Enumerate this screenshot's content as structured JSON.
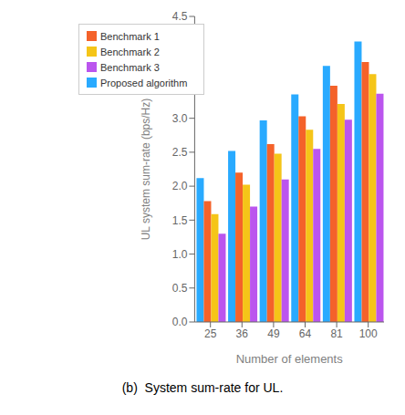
{
  "chart_data": {
    "type": "bar",
    "title": "(b)  System sum-rate for UL.",
    "xlabel": "Number of elements",
    "ylabel": "UL system sum-rate (bps/Hz)",
    "categories": [
      "25",
      "36",
      "49",
      "64",
      "81",
      "100"
    ],
    "series": [
      {
        "name": "Proposed algorithm",
        "color": "#29aaff",
        "values": [
          2.12,
          2.52,
          2.97,
          3.35,
          3.77,
          4.13
        ]
      },
      {
        "name": "Benchmark 1",
        "color": "#f4622a",
        "values": [
          1.78,
          2.2,
          2.62,
          3.03,
          3.48,
          3.83
        ]
      },
      {
        "name": "Benchmark 2",
        "color": "#f5c518",
        "values": [
          1.59,
          2.02,
          2.48,
          2.83,
          3.21,
          3.65
        ]
      },
      {
        "name": "Benchmark 3",
        "color": "#bb55ee",
        "values": [
          1.3,
          1.7,
          2.1,
          2.55,
          2.98,
          3.36
        ]
      }
    ],
    "ylim": [
      0,
      4.5
    ],
    "yticks": [
      {
        "value": 0,
        "label": "0.0"
      },
      0.5,
      {
        "value": 1,
        "label": "1.0"
      },
      1.5,
      {
        "value": 2,
        "label": "2.0"
      },
      2.5,
      {
        "value": 3,
        "label": "3.0"
      },
      3.5,
      {
        "value": 4,
        "label": "4.0"
      },
      4.5
    ],
    "grid": false,
    "legend": "upper left"
  }
}
